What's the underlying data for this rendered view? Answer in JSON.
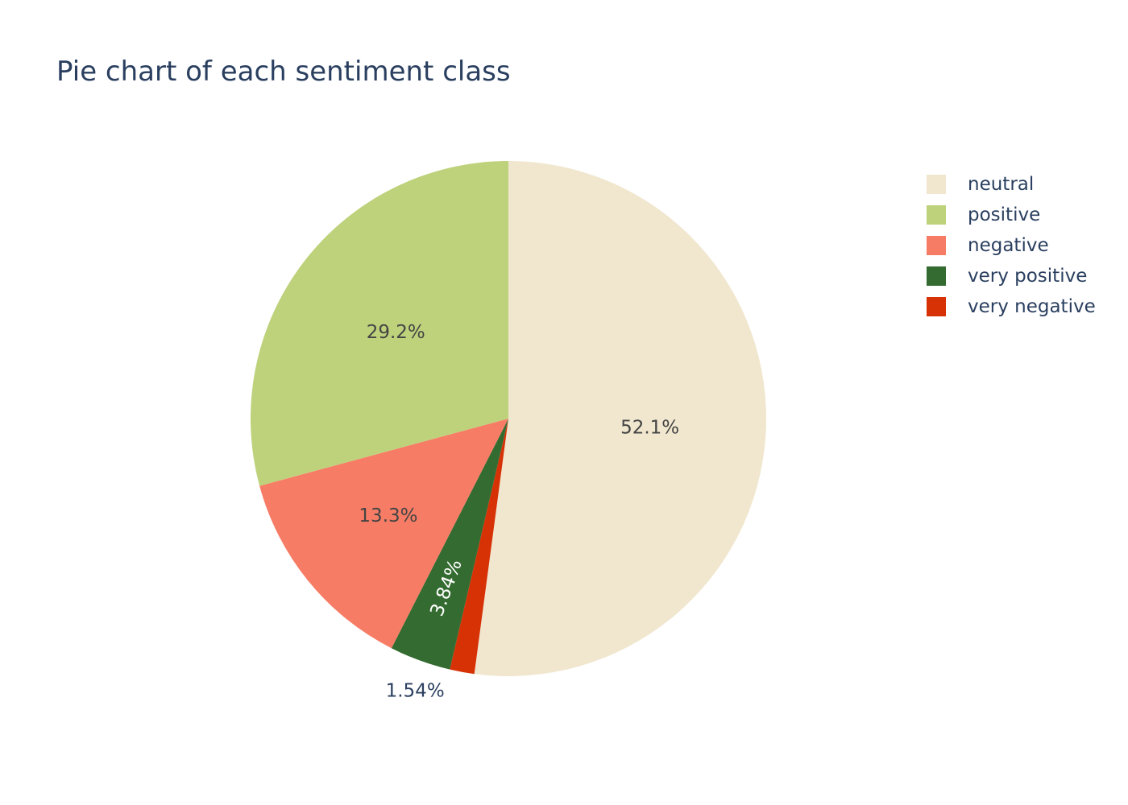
{
  "chart_data": {
    "type": "pie",
    "title": "Pie chart of each sentiment class",
    "legend_position": "top-right",
    "slices": [
      {
        "label": "neutral",
        "value": 52.1,
        "text": "52.1%",
        "color": "#f1e7cf",
        "text_color": "#444444",
        "text_position": "inside"
      },
      {
        "label": "very negative",
        "value": 1.54,
        "text": "1.54%",
        "color": "#d63206",
        "text_color": "#2a3f5f",
        "text_position": "outside"
      },
      {
        "label": "very positive",
        "value": 3.84,
        "text": "3.84%",
        "color": "#346b30",
        "text_color": "#ffffff",
        "text_position": "inside-radial"
      },
      {
        "label": "negative",
        "value": 13.3,
        "text": "13.3%",
        "color": "#f77c65",
        "text_color": "#444444",
        "text_position": "inside"
      },
      {
        "label": "positive",
        "value": 29.2,
        "text": "29.2%",
        "color": "#bed27c",
        "text_color": "#444444",
        "text_position": "inside"
      }
    ],
    "legend": [
      {
        "label": "neutral",
        "color": "#f1e7cf"
      },
      {
        "label": "positive",
        "color": "#bed27c"
      },
      {
        "label": "negative",
        "color": "#f77c65"
      },
      {
        "label": "very positive",
        "color": "#346b30"
      },
      {
        "label": "very negative",
        "color": "#d63206"
      }
    ]
  }
}
